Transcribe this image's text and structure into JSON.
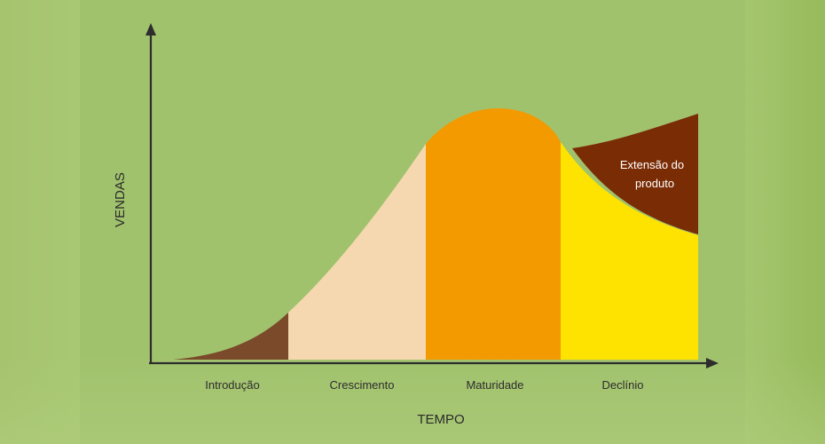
{
  "diagram": {
    "y_axis_label": "VENDAS",
    "x_axis_label": "TEMPO",
    "phases": [
      {
        "label": "Introdução",
        "color": "#7a4a2a"
      },
      {
        "label": "Crescimento",
        "color": "#f6d8b0"
      },
      {
        "label": "Maturidade",
        "color": "#f39a00"
      },
      {
        "label": "Declínio",
        "color": "#ffe300"
      }
    ],
    "extension": {
      "line1": "Extensão do",
      "line2": "produto",
      "color": "#7a2c05"
    },
    "axis_color": "#2d2d2d",
    "background_color": "#a3c46d"
  }
}
